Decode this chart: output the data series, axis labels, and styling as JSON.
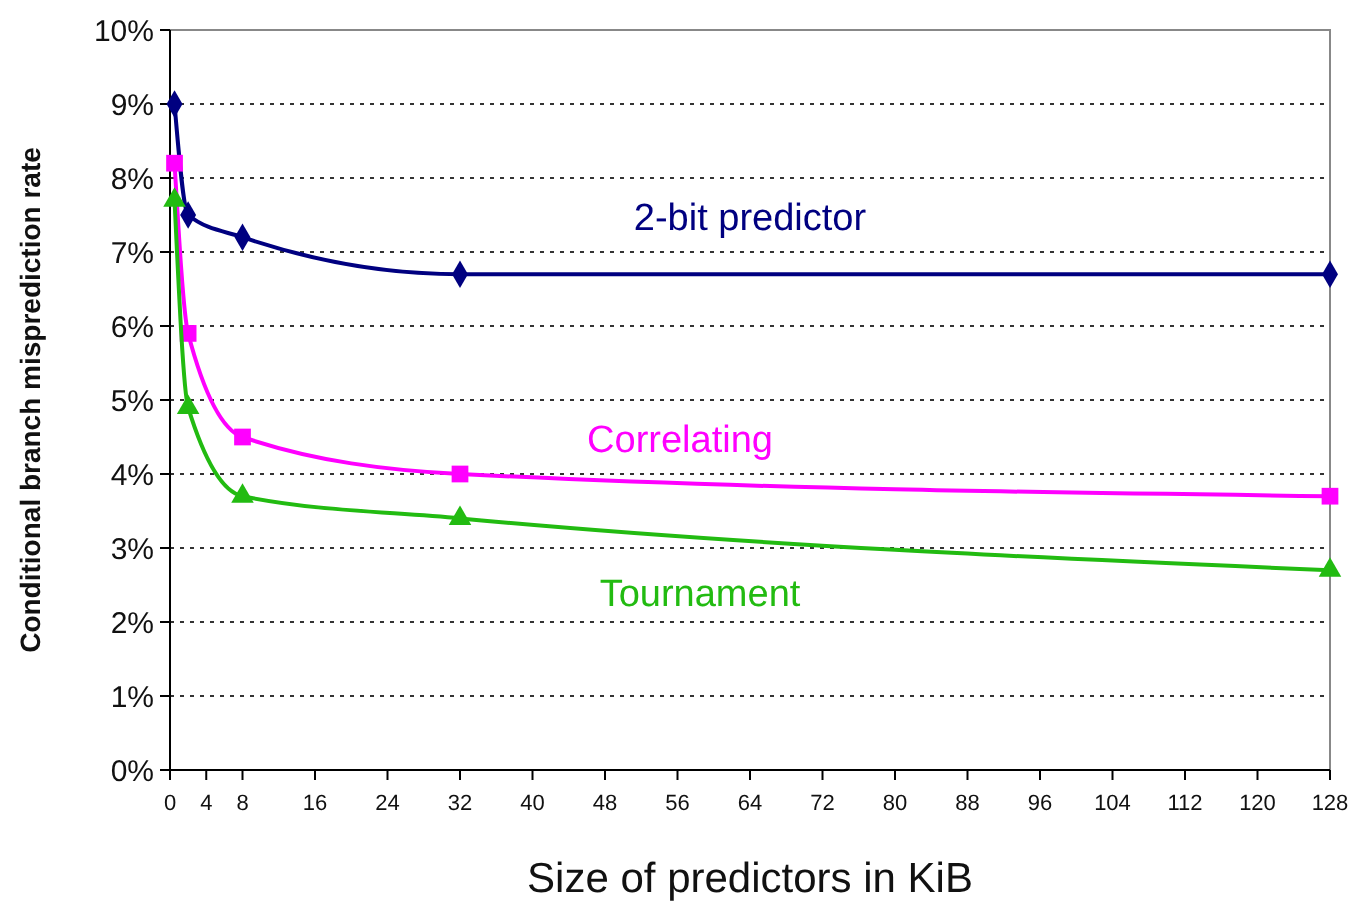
{
  "chart_data": {
    "type": "line",
    "xlabel": "Size of predictors in KiB",
    "ylabel": "Conditional branch misprediction rate",
    "xlim": [
      0,
      128
    ],
    "xticks": [
      0,
      4,
      8,
      16,
      24,
      32,
      40,
      48,
      56,
      64,
      72,
      80,
      88,
      96,
      104,
      112,
      120,
      128
    ],
    "ylim": [
      0,
      10
    ],
    "yticks": [
      {
        "value": 0,
        "label": "0%"
      },
      {
        "value": 1,
        "label": "1%"
      },
      {
        "value": 2,
        "label": "2%"
      },
      {
        "value": 3,
        "label": "3%"
      },
      {
        "value": 4,
        "label": "4%"
      },
      {
        "value": 5,
        "label": "5%"
      },
      {
        "value": 6,
        "label": "6%"
      },
      {
        "value": 7,
        "label": "7%"
      },
      {
        "value": 8,
        "label": "8%"
      },
      {
        "value": 9,
        "label": "9%"
      },
      {
        "value": 10,
        "label": "10%"
      }
    ],
    "grid": "y",
    "series": [
      {
        "name": "2-bit predictor",
        "color": "#000080",
        "marker": "diamond",
        "x": [
          0.5,
          2,
          8,
          32,
          128
        ],
        "values": [
          9.0,
          7.5,
          7.2,
          6.7,
          6.7
        ]
      },
      {
        "name": "Correlating",
        "color": "#ff00ff",
        "marker": "square",
        "x": [
          0.5,
          2,
          8,
          32,
          128
        ],
        "values": [
          8.2,
          5.9,
          4.5,
          4.0,
          3.7
        ]
      },
      {
        "name": "Tournament",
        "color": "#22bb11",
        "marker": "triangle",
        "x": [
          0.5,
          2,
          8,
          32,
          128
        ],
        "values": [
          7.7,
          4.9,
          3.7,
          3.4,
          2.7
        ]
      }
    ]
  }
}
